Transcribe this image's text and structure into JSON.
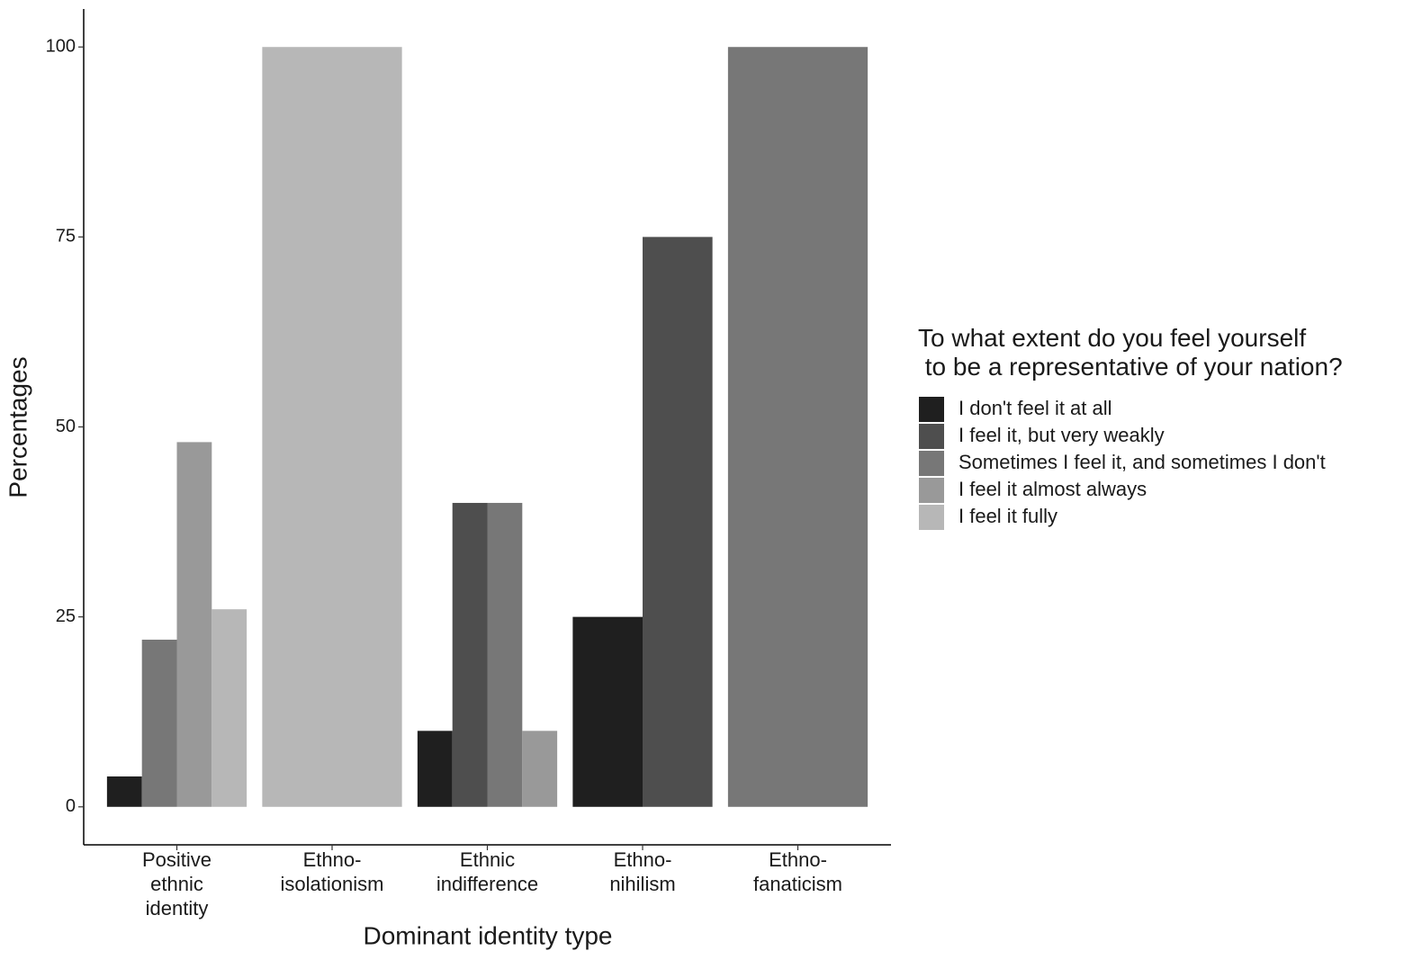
{
  "chart_data": {
    "type": "bar",
    "x_label": "Dominant identity type",
    "y_label": "Percentages",
    "categories": [
      "Positive\nethnic\nidentity",
      "Ethno-\nisolationism",
      "Ethnic\nindifference",
      "Ethno-\nnihilism",
      "Ethno-\nfanaticism"
    ],
    "legend_title": "To what extent do you feel yourself\n to be a representative of your nation?",
    "legend_position": "right",
    "series": [
      {
        "name": "I don't feel it at all",
        "color": "#1f1f1f",
        "values": [
          4,
          null,
          10,
          25,
          null
        ]
      },
      {
        "name": "I feel it, but very weakly",
        "color": "#4e4e4e",
        "values": [
          null,
          null,
          40,
          75,
          null
        ]
      },
      {
        "name": "Sometimes I feel it, and sometimes I don't",
        "color": "#777777",
        "values": [
          22,
          null,
          40,
          null,
          100
        ]
      },
      {
        "name": "I feel it almost always",
        "color": "#999999",
        "values": [
          48,
          null,
          10,
          null,
          null
        ]
      },
      {
        "name": "I feel it fully",
        "color": "#b7b7b7",
        "values": [
          26,
          100,
          null,
          null,
          null
        ]
      }
    ],
    "ylim": [
      -5,
      105
    ],
    "yticks": [
      0,
      25,
      50,
      75,
      100
    ],
    "grid": false
  }
}
